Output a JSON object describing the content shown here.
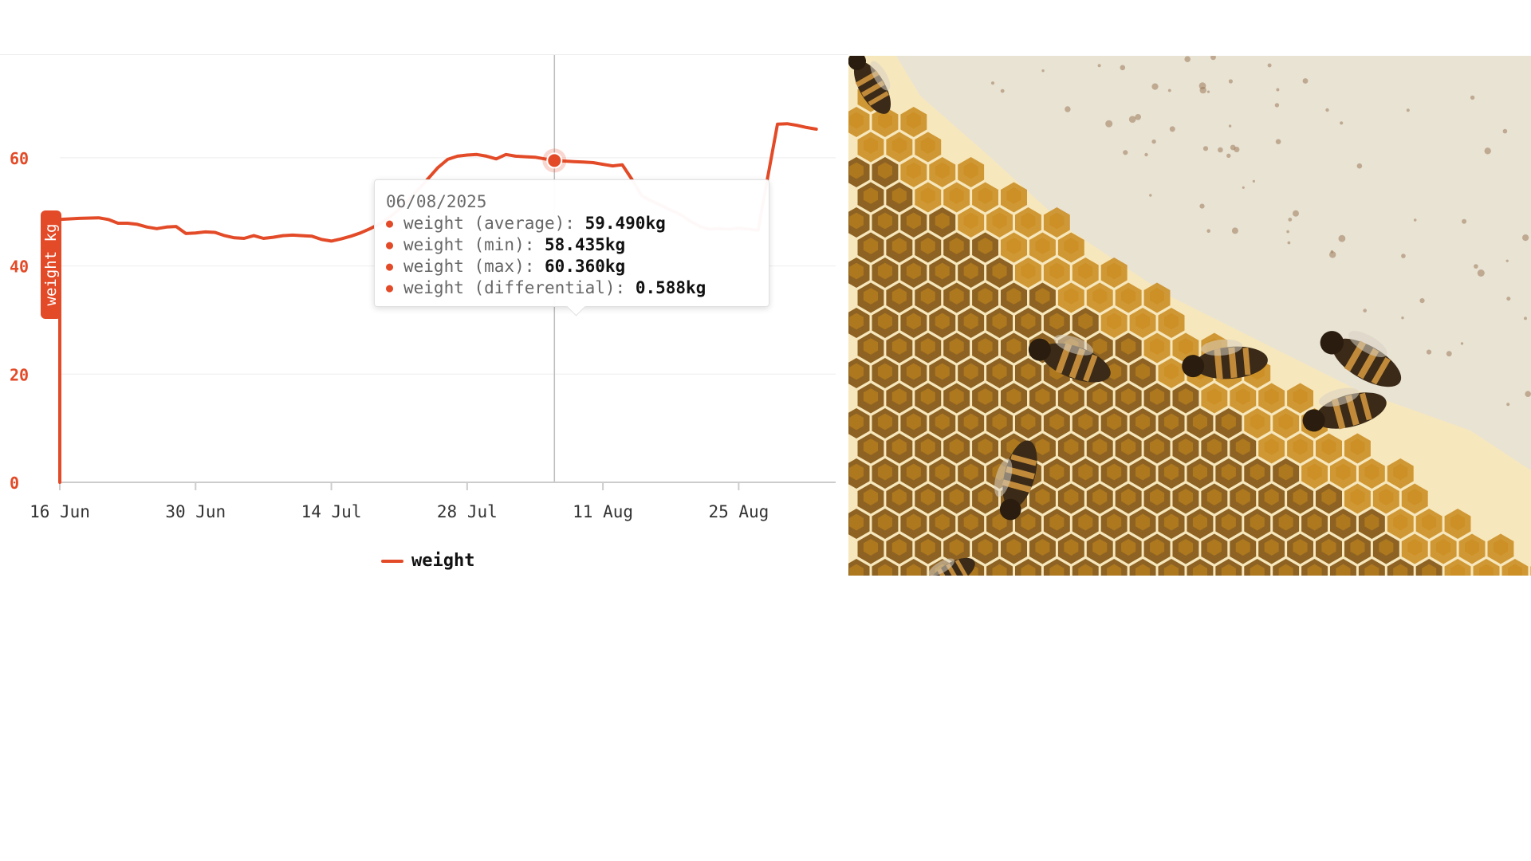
{
  "chart_data": {
    "type": "line",
    "title": "",
    "xlabel": "",
    "ylabel": "weight kg",
    "ylim": [
      0,
      79
    ],
    "x_range": [
      "2025-06-16",
      "2025-09-04"
    ],
    "yticks": [
      0,
      20,
      40,
      60
    ],
    "xticks": [
      {
        "date": "2025-06-16",
        "label": "16 Jun"
      },
      {
        "date": "2025-06-30",
        "label": "30 Jun"
      },
      {
        "date": "2025-07-14",
        "label": "14 Jul"
      },
      {
        "date": "2025-07-28",
        "label": "28 Jul"
      },
      {
        "date": "2025-08-11",
        "label": "11 Aug"
      },
      {
        "date": "2025-08-25",
        "label": "25 Aug"
      }
    ],
    "grid": true,
    "legend_position": "bottom-center",
    "series": [
      {
        "name": "weight",
        "color": "#e34a27",
        "points": [
          [
            "2025-06-16",
            0
          ],
          [
            "2025-06-16",
            48.6
          ],
          [
            "2025-06-18",
            48.8
          ],
          [
            "2025-06-20",
            48.9
          ],
          [
            "2025-06-21",
            48.6
          ],
          [
            "2025-06-22",
            47.9
          ],
          [
            "2025-06-23",
            47.9
          ],
          [
            "2025-06-24",
            47.7
          ],
          [
            "2025-06-25",
            47.2
          ],
          [
            "2025-06-26",
            46.9
          ],
          [
            "2025-06-27",
            47.2
          ],
          [
            "2025-06-28",
            47.3
          ],
          [
            "2025-06-29",
            46.0
          ],
          [
            "2025-06-30",
            46.1
          ],
          [
            "2025-07-01",
            46.3
          ],
          [
            "2025-07-02",
            46.2
          ],
          [
            "2025-07-03",
            45.6
          ],
          [
            "2025-07-04",
            45.2
          ],
          [
            "2025-07-05",
            45.1
          ],
          [
            "2025-07-06",
            45.6
          ],
          [
            "2025-07-07",
            45.1
          ],
          [
            "2025-07-08",
            45.3
          ],
          [
            "2025-07-09",
            45.6
          ],
          [
            "2025-07-10",
            45.7
          ],
          [
            "2025-07-11",
            45.6
          ],
          [
            "2025-07-12",
            45.5
          ],
          [
            "2025-07-13",
            44.9
          ],
          [
            "2025-07-14",
            44.6
          ],
          [
            "2025-07-15",
            45.0
          ],
          [
            "2025-07-16",
            45.5
          ],
          [
            "2025-07-17",
            46.1
          ],
          [
            "2025-07-18",
            46.9
          ],
          [
            "2025-07-19",
            47.8
          ],
          [
            "2025-07-20",
            49.0
          ],
          [
            "2025-07-21",
            50.5
          ],
          [
            "2025-07-22",
            52.3
          ],
          [
            "2025-07-23",
            54.2
          ],
          [
            "2025-07-24",
            56.2
          ],
          [
            "2025-07-25",
            58.2
          ],
          [
            "2025-07-26",
            59.7
          ],
          [
            "2025-07-27",
            60.3
          ],
          [
            "2025-07-28",
            60.5
          ],
          [
            "2025-07-29",
            60.6
          ],
          [
            "2025-07-30",
            60.3
          ],
          [
            "2025-07-31",
            59.8
          ],
          [
            "2025-08-01",
            60.6
          ],
          [
            "2025-08-02",
            60.3
          ],
          [
            "2025-08-03",
            60.2
          ],
          [
            "2025-08-04",
            60.1
          ],
          [
            "2025-08-05",
            59.8
          ],
          [
            "2025-08-06",
            59.49
          ],
          [
            "2025-08-07",
            59.4
          ],
          [
            "2025-08-08",
            59.3
          ],
          [
            "2025-08-09",
            59.2
          ],
          [
            "2025-08-10",
            59.1
          ],
          [
            "2025-08-11",
            58.8
          ],
          [
            "2025-08-12",
            58.5
          ],
          [
            "2025-08-13",
            58.7
          ],
          [
            "2025-08-14",
            56.0
          ],
          [
            "2025-08-15",
            53.0
          ],
          [
            "2025-08-16",
            52.0
          ],
          [
            "2025-08-17",
            51.2
          ],
          [
            "2025-08-18",
            50.3
          ],
          [
            "2025-08-19",
            49.5
          ],
          [
            "2025-08-20",
            48.3
          ],
          [
            "2025-08-21",
            47.3
          ],
          [
            "2025-08-22",
            46.8
          ],
          [
            "2025-08-23",
            46.9
          ],
          [
            "2025-08-24",
            46.8
          ],
          [
            "2025-08-25",
            47.0
          ],
          [
            "2025-08-26",
            46.8
          ],
          [
            "2025-08-27",
            46.6
          ],
          [
            "2025-08-28",
            56.5
          ],
          [
            "2025-08-29",
            66.2
          ],
          [
            "2025-08-30",
            66.3
          ],
          [
            "2025-08-31",
            66.0
          ],
          [
            "2025-09-01",
            65.6
          ],
          [
            "2025-09-02",
            65.3
          ]
        ]
      }
    ],
    "highlight": {
      "date": "2025-08-06",
      "value": 59.49
    },
    "tooltip": {
      "date": "06/08/2025",
      "rows": [
        {
          "label": "weight (average):",
          "value": "59.490kg"
        },
        {
          "label": "weight (min):",
          "value": "58.435kg"
        },
        {
          "label": "weight (max):",
          "value": "60.360kg"
        },
        {
          "label": "weight (differential):",
          "value": "0.588kg"
        }
      ]
    },
    "legend": {
      "label": "weight"
    }
  },
  "photo": {
    "subject": "honeycomb-with-bees-photo",
    "colors": {
      "capped": "#e9e3d4",
      "cell": "#c98a1c",
      "cell_dark": "#7a4a08",
      "wall": "#f6e7bd",
      "bee": "#3b2a17"
    }
  }
}
